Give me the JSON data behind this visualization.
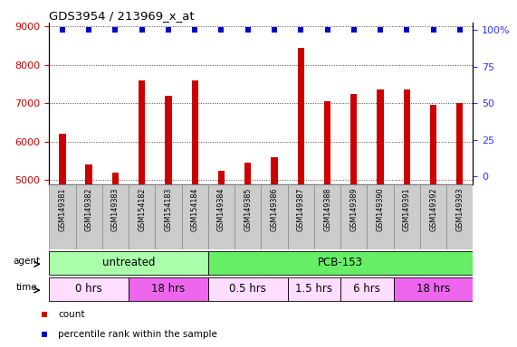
{
  "title": "GDS3954 / 213969_x_at",
  "samples": [
    "GSM149381",
    "GSM149382",
    "GSM149383",
    "GSM154182",
    "GSM154183",
    "GSM154184",
    "GSM149384",
    "GSM149385",
    "GSM149386",
    "GSM149387",
    "GSM149388",
    "GSM149389",
    "GSM149390",
    "GSM149391",
    "GSM149392",
    "GSM149393"
  ],
  "counts": [
    6200,
    5400,
    5200,
    7600,
    7200,
    7600,
    5250,
    5450,
    5600,
    8450,
    7050,
    7250,
    7350,
    7350,
    6950,
    7000
  ],
  "percentile_ranks": [
    100,
    100,
    100,
    100,
    100,
    100,
    100,
    100,
    100,
    100,
    100,
    100,
    100,
    100,
    100,
    100
  ],
  "bar_color": "#cc0000",
  "dot_color": "#0000cc",
  "ylim_left": [
    4900,
    9100
  ],
  "ylim_right": [
    -5,
    105
  ],
  "yticks_left": [
    5000,
    6000,
    7000,
    8000,
    9000
  ],
  "yticks_right": [
    0,
    25,
    50,
    75,
    100
  ],
  "agent_groups": [
    {
      "label": "untreated",
      "start": 0,
      "end": 6,
      "color": "#aaffaa"
    },
    {
      "label": "PCB-153",
      "start": 6,
      "end": 16,
      "color": "#66ee66"
    }
  ],
  "time_groups": [
    {
      "label": "0 hrs",
      "start": 0,
      "end": 3,
      "color": "#ffddff"
    },
    {
      "label": "18 hrs",
      "start": 3,
      "end": 6,
      "color": "#ee66ee"
    },
    {
      "label": "0.5 hrs",
      "start": 6,
      "end": 9,
      "color": "#ffddff"
    },
    {
      "label": "1.5 hrs",
      "start": 9,
      "end": 11,
      "color": "#ffddff"
    },
    {
      "label": "6 hrs",
      "start": 11,
      "end": 13,
      "color": "#ffddff"
    },
    {
      "label": "18 hrs",
      "start": 13,
      "end": 16,
      "color": "#ee66ee"
    }
  ],
  "bar_color_left": "#cc0000",
  "tick_color_left": "#cc0000",
  "tick_color_right": "#3333ff",
  "background_color": "#ffffff",
  "plot_bg": "#ffffff",
  "agent_label": "agent",
  "time_label": "time",
  "gray_box_color": "#cccccc",
  "gray_box_edge": "#888888"
}
